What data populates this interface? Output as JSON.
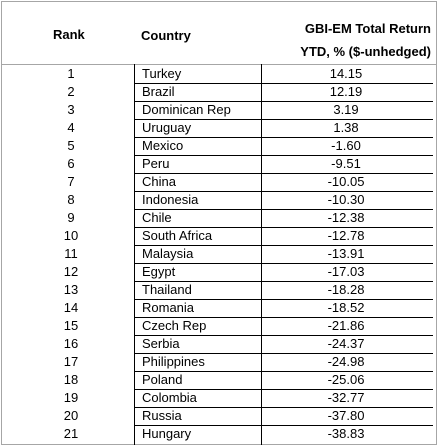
{
  "table": {
    "headers": {
      "rank": "Rank",
      "country": "Country",
      "return_line1": "GBI-EM Total Return",
      "return_line2": "YTD, % ($-unhedged)"
    },
    "rows": [
      {
        "rank": "1",
        "country": "Turkey",
        "return": "14.15"
      },
      {
        "rank": "2",
        "country": "Brazil",
        "return": "12.19"
      },
      {
        "rank": "3",
        "country": "Dominican Rep",
        "return": "3.19"
      },
      {
        "rank": "4",
        "country": "Uruguay",
        "return": "1.38"
      },
      {
        "rank": "5",
        "country": "Mexico",
        "return": "-1.60"
      },
      {
        "rank": "6",
        "country": "Peru",
        "return": "-9.51"
      },
      {
        "rank": "7",
        "country": "China",
        "return": "-10.05"
      },
      {
        "rank": "8",
        "country": "Indonesia",
        "return": "-10.30"
      },
      {
        "rank": "9",
        "country": "Chile",
        "return": "-12.38"
      },
      {
        "rank": "10",
        "country": "South Africa",
        "return": "-12.78"
      },
      {
        "rank": "11",
        "country": "Malaysia",
        "return": "-13.91"
      },
      {
        "rank": "12",
        "country": "Egypt",
        "return": "-17.03"
      },
      {
        "rank": "13",
        "country": "Thailand",
        "return": "-18.28"
      },
      {
        "rank": "14",
        "country": "Romania",
        "return": "-18.52"
      },
      {
        "rank": "15",
        "country": "Czech Rep",
        "return": "-21.86"
      },
      {
        "rank": "16",
        "country": "Serbia",
        "return": "-24.37"
      },
      {
        "rank": "17",
        "country": "Philippines",
        "return": "-24.98"
      },
      {
        "rank": "18",
        "country": "Poland",
        "return": "-25.06"
      },
      {
        "rank": "19",
        "country": "Colombia",
        "return": "-32.77"
      },
      {
        "rank": "20",
        "country": "Russia",
        "return": "-37.80"
      },
      {
        "rank": "21",
        "country": "Hungary",
        "return": "-38.83"
      }
    ]
  }
}
